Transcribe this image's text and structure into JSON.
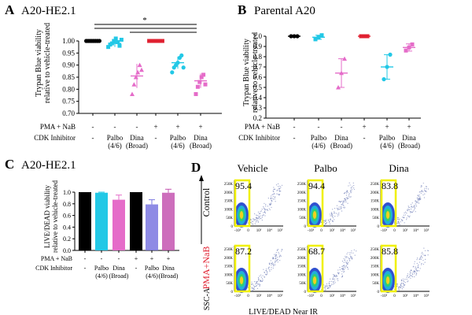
{
  "colors": {
    "ctrl": "#000000",
    "palbo": "#22c8e6",
    "dina": "#e56cc9",
    "pma": "#e02030",
    "flow_box": "#f0f000",
    "flow_pma_label": "#e02030"
  },
  "panel_a": {
    "letter": "A",
    "title": "A20-HE2.1",
    "ylabel": [
      "Trypan Blue viability",
      "relative to vehicle-treated"
    ],
    "yticks": [
      "1.00",
      "0.95",
      "0.90",
      "0.85",
      "0.80",
      "0.75",
      "0.70"
    ],
    "sig": "*",
    "row1": [
      "-",
      "-",
      "-",
      "+",
      "+",
      "+"
    ],
    "row2": [
      "-",
      "Palbo",
      "Dina",
      "-",
      "Palbo",
      "Dina"
    ],
    "row2b": [
      "",
      "(4/6)",
      "(Broad)",
      "",
      "(4/6)",
      "(Broad)"
    ]
  },
  "panel_b": {
    "letter": "B",
    "title": "Parental A20",
    "ylabel": [
      "Trypan Blue viability",
      "relative to vehicle-treated"
    ],
    "yticks": [
      "1.0",
      "0.9",
      "0.8",
      "0.7",
      "0.6",
      "0.5",
      "0.4",
      "0.3",
      "0.2"
    ],
    "row1": [
      "-",
      "-",
      "-",
      "+",
      "+",
      "+"
    ],
    "row2": [
      "-",
      "Palbo",
      "Dina",
      "-",
      "Palbo",
      "Dina"
    ],
    "row2b": [
      "",
      "(4/6)",
      "(Broad)",
      "",
      "(4/6)",
      "(Broad)"
    ]
  },
  "panel_c": {
    "letter": "C",
    "title": "A20-HE2.1",
    "ylabel": [
      "LIVE/DEAD viability",
      "relative to vehicle-treated"
    ],
    "yticks": [
      "1.0",
      "0.8",
      "0.6",
      "0.4",
      "0.2",
      "0.0"
    ],
    "row1": [
      "-",
      "-",
      "-",
      "+",
      "+",
      "+"
    ],
    "row2": [
      "-",
      "Palbo",
      "Dina",
      "-",
      "Palbo",
      "Dina"
    ],
    "row2b": [
      "",
      "(4/6)",
      "(Broad)",
      "",
      "(4/6)",
      "(Broad)"
    ]
  },
  "row_labels": {
    "pma": "PMA + NaB",
    "cdk": "CDK Inhibitor"
  },
  "panel_d": {
    "letter": "D",
    "cols": [
      "Vehicle",
      "Palbo",
      "Dina"
    ],
    "rows": [
      "Control",
      "PMA+NaB"
    ],
    "values": [
      [
        "95.4",
        "94.4",
        "83.8"
      ],
      [
        "87.2",
        "68.7",
        "85.8"
      ]
    ],
    "yticks": [
      "250K",
      "200K",
      "150K",
      "100K",
      "50K",
      "0"
    ],
    "xticks": [
      "-10³",
      "0",
      "10³",
      "10⁴",
      "10⁵"
    ],
    "yaxis": "SSC-A",
    "xaxis": "LIVE/DEAD Near IR"
  },
  "chart_data": [
    {
      "type": "scatter",
      "title": "A20-HE2.1",
      "ylabel": "Trypan Blue viability relative to vehicle-treated",
      "ylim": [
        0.7,
        1.0
      ],
      "categories": [
        "-/-",
        "-/Palbo (4/6)",
        "-/Dina (Broad)",
        "+/-",
        "+/Palbo (4/6)",
        "+/Dina (Broad)"
      ],
      "mean": [
        1.0,
        0.99,
        0.855,
        1.0,
        0.91,
        0.835
      ],
      "sd": [
        0.0,
        0.015,
        0.05,
        0.0,
        0.025,
        0.03
      ],
      "points": [
        [
          1,
          1,
          1,
          1,
          1,
          1,
          1,
          1
        ],
        [
          0.975,
          0.985,
          0.99,
          1.0,
          1.01,
          0.995,
          0.98,
          1.005
        ],
        [
          0.78,
          0.82,
          0.85,
          0.87,
          0.9,
          0.88
        ],
        [
          1,
          1,
          1,
          1,
          1,
          1,
          1,
          1
        ],
        [
          0.87,
          0.89,
          0.9,
          0.91,
          0.93,
          0.94,
          0.89
        ],
        [
          0.78,
          0.81,
          0.83,
          0.85,
          0.86,
          0.82
        ]
      ]
    },
    {
      "type": "scatter",
      "title": "Parental A20",
      "ylabel": "Trypan Blue viability relative to vehicle-treated",
      "ylim": [
        0.2,
        1.0
      ],
      "categories": [
        "-/-",
        "-/Palbo (4/6)",
        "-/Dina (Broad)",
        "+/-",
        "+/Palbo (4/6)",
        "+/Dina (Broad)"
      ],
      "mean": [
        1.0,
        0.99,
        0.64,
        1.0,
        0.7,
        0.89
      ],
      "sd": [
        0.0,
        0.02,
        0.14,
        0.0,
        0.12,
        0.035
      ],
      "points": [
        [
          1,
          1,
          1
        ],
        [
          0.97,
          0.99,
          1.01
        ],
        [
          0.5,
          0.64,
          0.78
        ],
        [
          1,
          1,
          1
        ],
        [
          0.58,
          0.7,
          0.82
        ],
        [
          0.86,
          0.89,
          0.92
        ]
      ]
    },
    {
      "type": "bar",
      "title": "A20-HE2.1",
      "ylabel": "LIVE/DEAD viability relative to vehicle-treated",
      "ylim": [
        0.0,
        1.0
      ],
      "categories": [
        "-/-",
        "-/Palbo (4/6)",
        "-/Dina (Broad)",
        "+/-",
        "+/Palbo (4/6)",
        "+/Dina (Broad)"
      ],
      "values": [
        1.0,
        0.99,
        0.87,
        1.0,
        0.79,
        0.99
      ],
      "err": [
        0.0,
        0.01,
        0.08,
        0.0,
        0.08,
        0.06
      ]
    }
  ]
}
